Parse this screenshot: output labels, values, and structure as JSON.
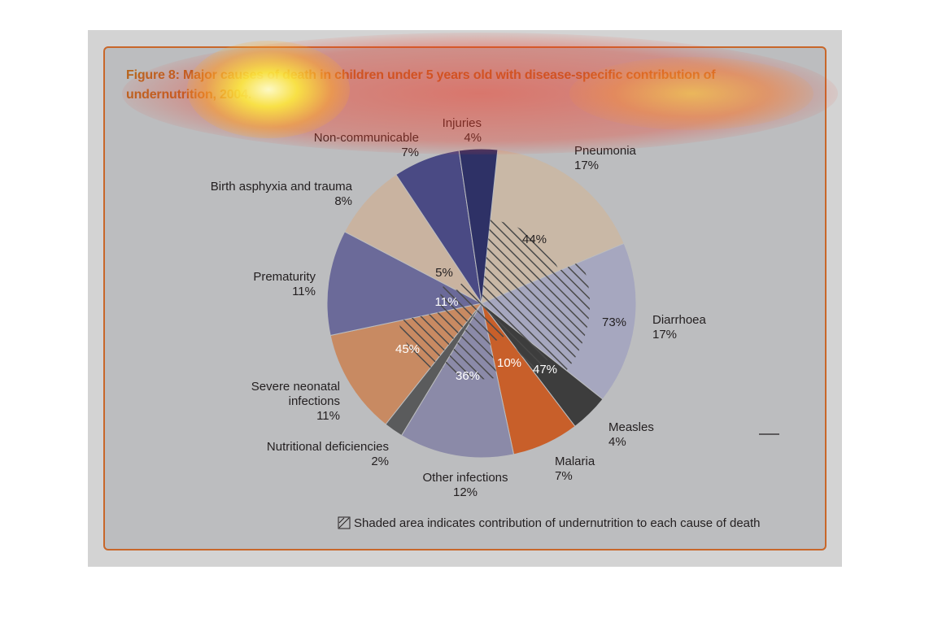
{
  "figure": {
    "title": "Figure 8: Major causes of death in children under 5 years old with disease-specific contribution of undernutrition, 2004.",
    "legend": "Shaded area indicates contribution of undernutrition to each cause of death"
  },
  "chart_data": {
    "type": "pie",
    "title": "Figure 8: Major causes of death in children under 5 years old with disease-specific contribution of undernutrition, 2004.",
    "slices": [
      {
        "label": "Pneumonia",
        "value": 17,
        "pct_label": "17%",
        "undernutrition": 44,
        "undernutrition_label": "44%",
        "color": "#c9b8a6"
      },
      {
        "label": "Diarrhoea",
        "value": 17,
        "pct_label": "17%",
        "undernutrition": 73,
        "undernutrition_label": "73%",
        "color": "#a6a7bf"
      },
      {
        "label": "Measles",
        "value": 4,
        "pct_label": "4%",
        "undernutrition": 47,
        "undernutrition_label": "47%",
        "color": "#3d3d3d"
      },
      {
        "label": "Malaria",
        "value": 7,
        "pct_label": "7%",
        "undernutrition": 10,
        "undernutrition_label": "10%",
        "color": "#c85f2a"
      },
      {
        "label": "Other infections",
        "value": 12,
        "pct_label": "12%",
        "undernutrition": 36,
        "undernutrition_label": "36%",
        "color": "#8b8aa8"
      },
      {
        "label": "Nutritional deficiencies",
        "value": 2,
        "pct_label": "2%",
        "undernutrition": null,
        "undernutrition_label": "",
        "color": "#5a5b5c"
      },
      {
        "label": "Severe neonatal infections",
        "value": 11,
        "pct_label": "11%",
        "undernutrition": 45,
        "undernutrition_label": "45%",
        "color": "#c88a62"
      },
      {
        "label": "Prematurity",
        "value": 11,
        "pct_label": "11%",
        "undernutrition": 11,
        "undernutrition_label": "11%",
        "color": "#6b6a99"
      },
      {
        "label": "Birth asphyxia and trauma",
        "value": 8,
        "pct_label": "8%",
        "undernutrition": 5,
        "undernutrition_label": "5%",
        "color": "#c9b3a0"
      },
      {
        "label": "Non-communicable",
        "value": 7,
        "pct_label": "7%",
        "undernutrition": null,
        "undernutrition_label": "",
        "color": "#4a4a84"
      },
      {
        "label": "Injuries",
        "value": 4,
        "pct_label": "4%",
        "undernutrition": null,
        "undernutrition_label": "",
        "color": "#2e3166"
      }
    ],
    "legend_placement": "bottom"
  }
}
